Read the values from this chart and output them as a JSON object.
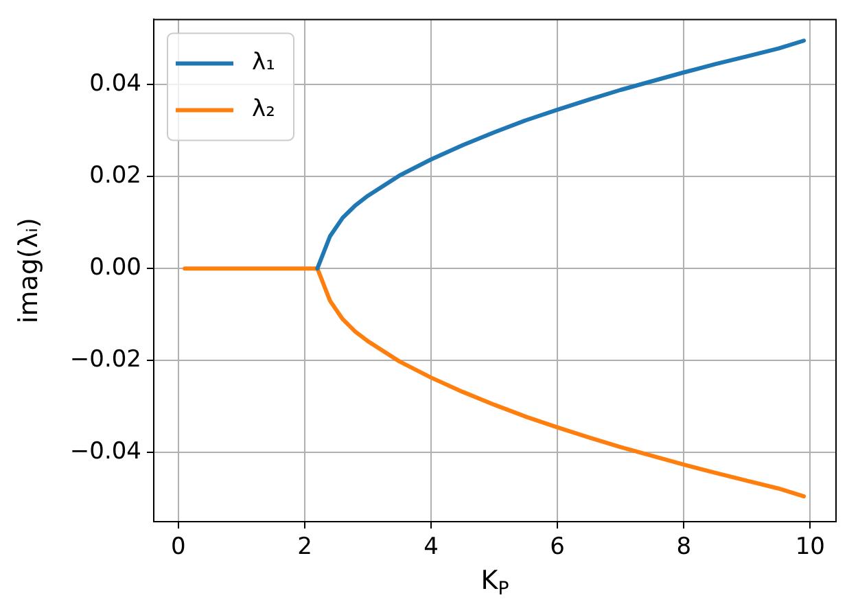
{
  "chart_data": {
    "type": "line",
    "xlabel": "K$_{P}$",
    "ylabel": "imag(λᵢ)",
    "xlim": [
      -0.39,
      10.41
    ],
    "ylim": [
      -0.055,
      0.0541
    ],
    "xticks": [
      0,
      2,
      4,
      6,
      8,
      10
    ],
    "yticks": [
      {
        "value": -0.04,
        "label": "−0.04"
      },
      {
        "value": -0.02,
        "label": "−0.02"
      },
      {
        "value": 0,
        "label": "0.00"
      },
      {
        "value": 0.02,
        "label": "0.02"
      },
      {
        "value": 0.04,
        "label": "0.04"
      }
    ],
    "grid": true,
    "legend": "top left",
    "marker": "none",
    "line_style": "solid",
    "series": [
      {
        "name": "λ₁",
        "color": "#1f77b4",
        "x": [
          2.2,
          2.4,
          2.6,
          2.8,
          3.0,
          3.5,
          4,
          4.5,
          5,
          5.5,
          6,
          6.5,
          7,
          7.5,
          8,
          8.5,
          9,
          9.5,
          9.9
        ],
        "values": [
          0,
          0.007,
          0.011,
          0.0137,
          0.0158,
          0.0202,
          0.0237,
          0.0268,
          0.0296,
          0.0322,
          0.0345,
          0.0367,
          0.0388,
          0.0407,
          0.0426,
          0.0444,
          0.0461,
          0.0478,
          0.0495
        ]
      },
      {
        "name": "λ₂",
        "color": "#ff7f0e",
        "x": [
          0.1,
          2.2,
          2.4,
          2.6,
          2.8,
          3.0,
          3.5,
          4,
          4.5,
          5,
          5.5,
          6,
          6.5,
          7,
          7.5,
          8,
          8.5,
          9,
          9.5,
          9.9
        ],
        "values": [
          0,
          0,
          -0.007,
          -0.011,
          -0.0137,
          -0.0158,
          -0.0202,
          -0.0237,
          -0.0268,
          -0.0296,
          -0.0322,
          -0.0345,
          -0.0367,
          -0.0388,
          -0.0407,
          -0.0426,
          -0.0444,
          -0.0461,
          -0.0478,
          -0.0495
        ]
      }
    ]
  }
}
